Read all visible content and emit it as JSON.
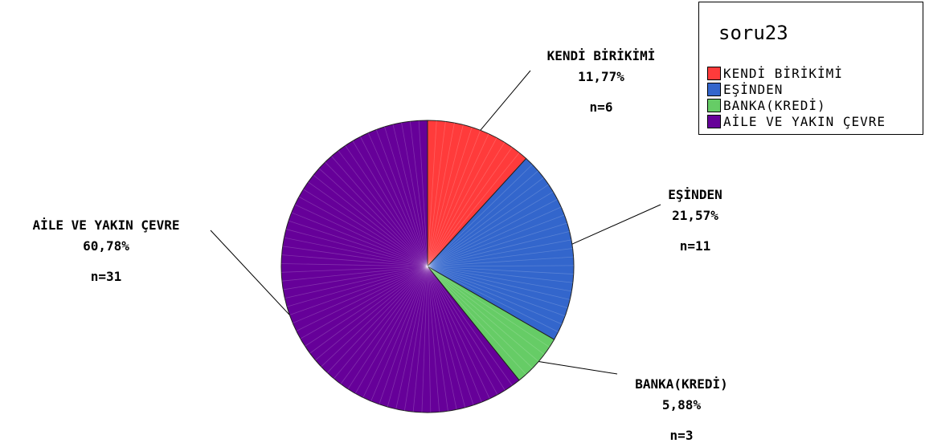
{
  "chart_data": {
    "type": "pie",
    "legend_title": "soru23",
    "legend_position": "top-right",
    "slices": [
      {
        "label": "KENDİ BİRİKİMİ",
        "percent": 11.77,
        "percent_text": "11,77%",
        "n": 6,
        "n_text": "n=6",
        "color": "#ff3b3b"
      },
      {
        "label": "EŞİNDEN",
        "percent": 21.57,
        "percent_text": "21,57%",
        "n": 11,
        "n_text": "n=11",
        "color": "#3366cc"
      },
      {
        "label": "BANKA(KREDİ)",
        "percent": 5.88,
        "percent_text": "5,88%",
        "n": 3,
        "n_text": "n=3",
        "color": "#66cc66"
      },
      {
        "label": "AİLE VE YAKIN ÇEVRE",
        "percent": 60.78,
        "percent_text": "60,78%",
        "n": 31,
        "n_text": "n=31",
        "color": "#660099"
      }
    ]
  }
}
